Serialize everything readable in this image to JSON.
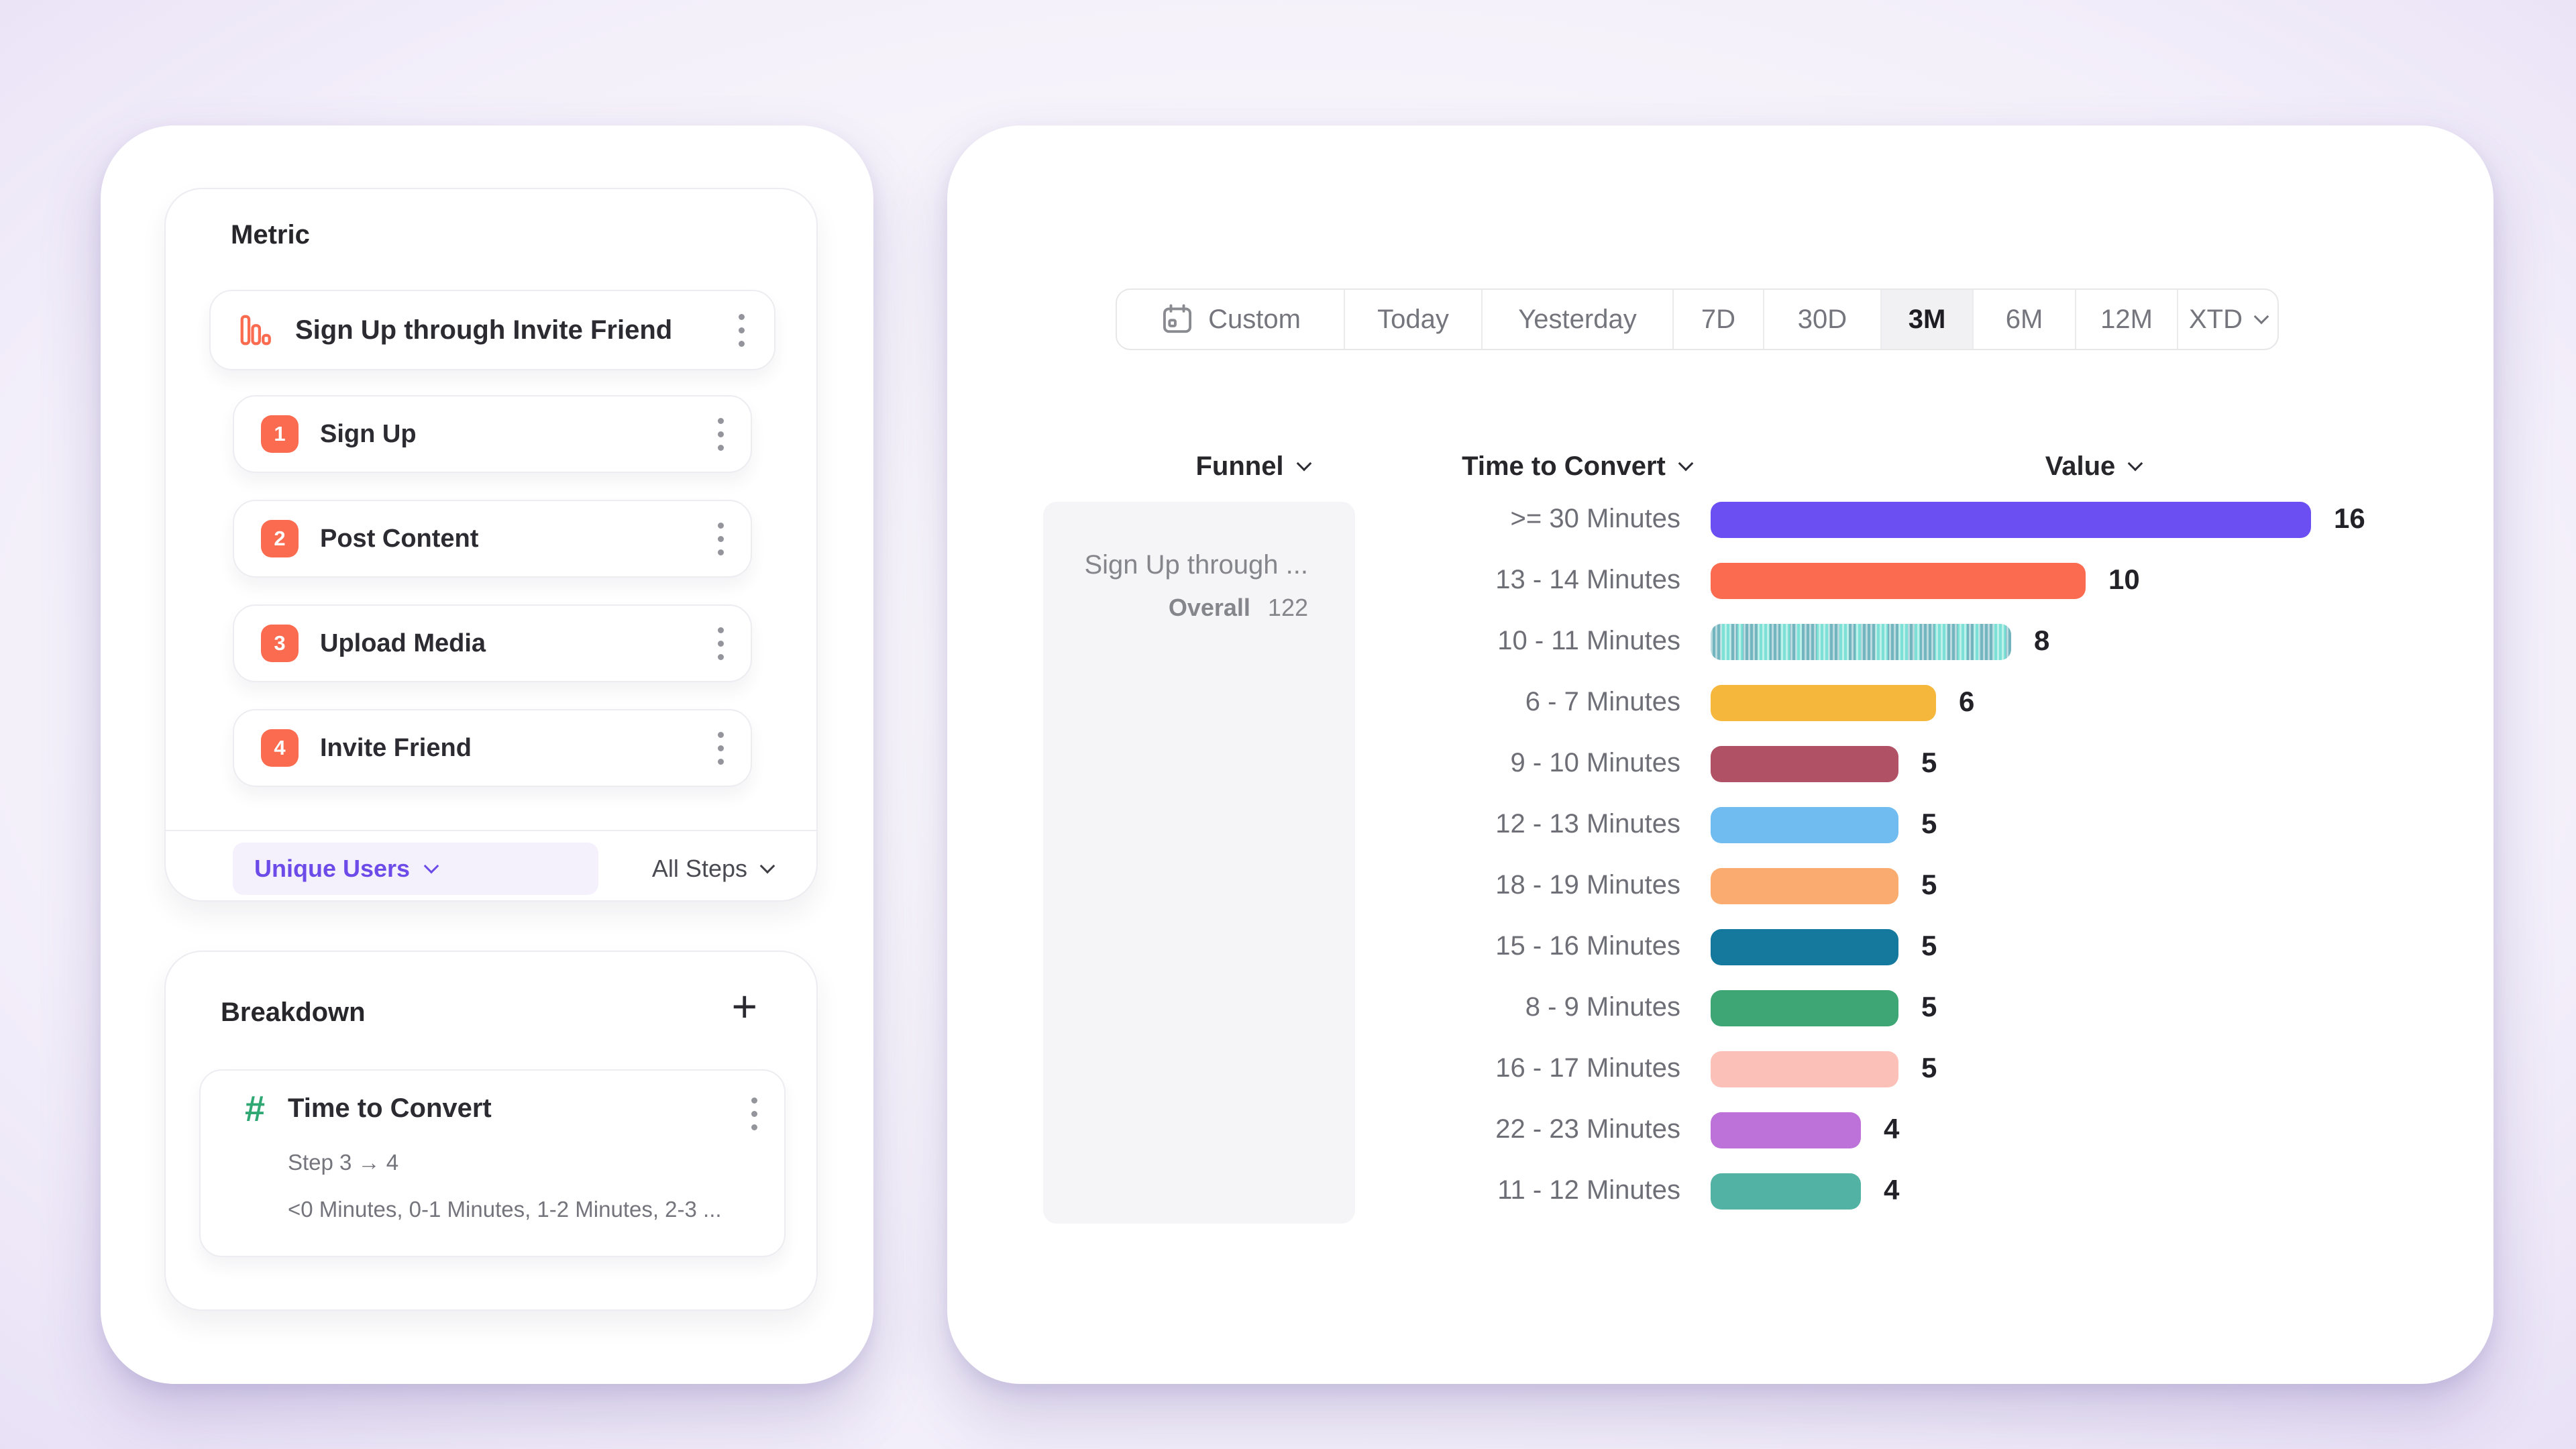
{
  "left_panel": {
    "metric": {
      "section_title": "Metric",
      "funnel_name": "Sign Up through Invite Friend",
      "steps": [
        {
          "num": "1",
          "label": "Sign Up"
        },
        {
          "num": "2",
          "label": "Post Content"
        },
        {
          "num": "3",
          "label": "Upload Media"
        },
        {
          "num": "4",
          "label": "Invite Friend"
        }
      ],
      "measure_label": "Unique Users",
      "steps_filter_label": "All Steps"
    },
    "breakdown": {
      "section_title": "Breakdown",
      "add_label": "+",
      "property_name": "Time to Convert",
      "step_range": "Step 3 → 4",
      "buckets_preview": "<0 Minutes, 0-1 Minutes, 1-2 Minutes, 2-3 ..."
    }
  },
  "toolbar": {
    "tabs": [
      {
        "label": "Custom"
      },
      {
        "label": "Today"
      },
      {
        "label": "Yesterday"
      },
      {
        "label": "7D"
      },
      {
        "label": "30D"
      },
      {
        "label": "3M"
      },
      {
        "label": "6M"
      },
      {
        "label": "12M"
      },
      {
        "label": "XTD"
      }
    ],
    "selected": "3M"
  },
  "table": {
    "headers": {
      "funnel": "Funnel",
      "time_to_convert": "Time to Convert",
      "value": "Value"
    },
    "funnel_cell": {
      "name": "Sign Up through ...",
      "overall_label": "Overall",
      "overall_value": "122"
    }
  },
  "chart_data": {
    "type": "bar",
    "orientation": "horizontal",
    "categories": [
      ">= 30 Minutes",
      "13 - 14 Minutes",
      "10 - 11 Minutes",
      "6 - 7 Minutes",
      "9 - 10 Minutes",
      "12 - 13 Minutes",
      "18 - 19 Minutes",
      "15 - 16 Minutes",
      "8 - 9 Minutes",
      "16 - 17 Minutes",
      "22 - 23 Minutes",
      "11 - 12 Minutes"
    ],
    "values": [
      16,
      10,
      8,
      6,
      5,
      5,
      5,
      5,
      5,
      5,
      4,
      4
    ],
    "colors": [
      "#6C4FF3",
      "#FA6B50",
      "#7CE0D6",
      "#F6B73D",
      "#B15165",
      "#70BCF1",
      "#FAAB6F",
      "#15799E",
      "#3EA675",
      "#FBC1B9",
      "#BC72D8",
      "#52B2A3"
    ],
    "patterns": [
      "solid",
      "solid",
      "striped",
      "solid",
      "solid",
      "solid",
      "solid",
      "solid",
      "solid",
      "solid",
      "solid",
      "solid"
    ],
    "xlim": [
      0,
      16
    ],
    "grid": false,
    "value_labels_shown": true
  },
  "accent_colors": {
    "coral": "#FA6B50",
    "purple": "#6C4BE8",
    "green_hash": "#2fa874"
  }
}
